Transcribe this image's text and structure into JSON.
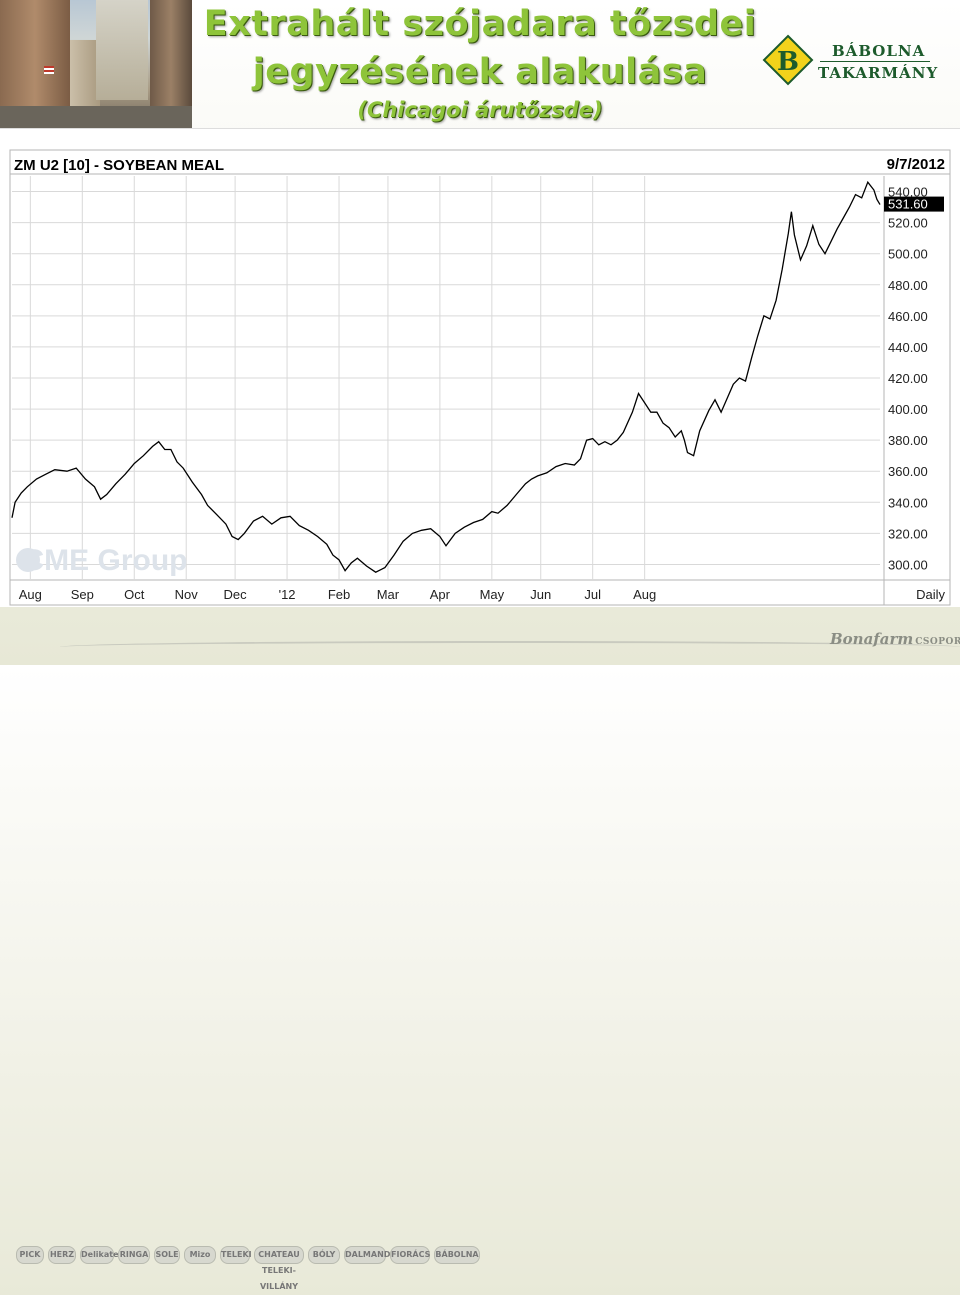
{
  "header": {
    "title_line1": "Extrahált szójadara tőzsdei",
    "title_line2": "jegyzésének alakulása",
    "subtitle": "(Chicagoi árutőzsde)"
  },
  "logo": {
    "line1": "BÁBOLNA",
    "line2": "TAKARMÁNY",
    "letter": "B"
  },
  "footer": {
    "brands": [
      "PICK",
      "HERZ",
      "Delikatesz",
      "RINGA",
      "SOLE",
      "Mizo",
      "TELEKI",
      "CHATEAU TELEKI-VILLÁNY",
      "BÓLY",
      "DALMAND",
      "FIORÁCS",
      "BÁBOLNA"
    ],
    "group_name": "Bonafarm",
    "group_suffix": "CSOPORT"
  },
  "colors": {
    "title_green": "#8ec43a",
    "logo_green": "#1d5b2c",
    "logo_yellow": "#f2d21b",
    "line": "#000000",
    "grid": "#d9d9d9"
  },
  "chart_data": {
    "type": "line",
    "title": "ZM U2 [10] - SOYBEAN MEAL",
    "date": "9/7/2012",
    "frequency_label": "Daily",
    "watermark": "CME Group",
    "last_value_label": "531.60",
    "last_value": 531.6,
    "x_tick_labels": [
      "Aug",
      "Sep",
      "Oct",
      "Nov",
      "Dec",
      "'12",
      "Feb",
      "Mar",
      "Apr",
      "May",
      "Jun",
      "Jul",
      "Aug"
    ],
    "y_tick_labels": [
      "540.00",
      "520.00",
      "500.00",
      "480.00",
      "460.00",
      "440.00",
      "420.00",
      "400.00",
      "380.00",
      "360.00",
      "340.00",
      "320.00",
      "300.00"
    ],
    "ylim": [
      290,
      550
    ],
    "grid": true,
    "series": [
      {
        "values": [
          [
            2011.55,
            330
          ],
          [
            2011.555,
            340
          ],
          [
            2011.565,
            346
          ],
          [
            2011.575,
            350
          ],
          [
            2011.59,
            355
          ],
          [
            2011.605,
            358
          ],
          [
            2011.62,
            361
          ],
          [
            2011.64,
            360
          ],
          [
            2011.655,
            362
          ],
          [
            2011.67,
            355
          ],
          [
            2011.685,
            350
          ],
          [
            2011.695,
            342
          ],
          [
            2011.705,
            345
          ],
          [
            2011.72,
            352
          ],
          [
            2011.735,
            358
          ],
          [
            2011.75,
            365
          ],
          [
            2011.765,
            370
          ],
          [
            2011.78,
            376
          ],
          [
            2011.79,
            379
          ],
          [
            2011.8,
            374
          ],
          [
            2011.81,
            374
          ],
          [
            2011.82,
            366
          ],
          [
            2011.83,
            362
          ],
          [
            2011.845,
            353
          ],
          [
            2011.86,
            345
          ],
          [
            2011.87,
            338
          ],
          [
            2011.885,
            332
          ],
          [
            2011.9,
            326
          ],
          [
            2011.91,
            318
          ],
          [
            2011.92,
            316
          ],
          [
            2011.93,
            320
          ],
          [
            2011.945,
            328
          ],
          [
            2011.96,
            331
          ],
          [
            2011.975,
            326
          ],
          [
            2011.99,
            330
          ],
          [
            2012.005,
            331
          ],
          [
            2012.02,
            325
          ],
          [
            2012.035,
            322
          ],
          [
            2012.05,
            318
          ],
          [
            2012.065,
            313
          ],
          [
            2012.075,
            306
          ],
          [
            2012.085,
            303
          ],
          [
            2012.095,
            296
          ],
          [
            2012.105,
            301
          ],
          [
            2012.115,
            304
          ],
          [
            2012.13,
            299
          ],
          [
            2012.145,
            295
          ],
          [
            2012.16,
            298
          ],
          [
            2012.175,
            306
          ],
          [
            2012.19,
            315
          ],
          [
            2012.205,
            320
          ],
          [
            2012.22,
            322
          ],
          [
            2012.235,
            323
          ],
          [
            2012.25,
            318
          ],
          [
            2012.26,
            312
          ],
          [
            2012.275,
            320
          ],
          [
            2012.29,
            324
          ],
          [
            2012.305,
            327
          ],
          [
            2012.32,
            329
          ],
          [
            2012.335,
            334
          ],
          [
            2012.345,
            333
          ],
          [
            2012.36,
            338
          ],
          [
            2012.375,
            345
          ],
          [
            2012.39,
            352
          ],
          [
            2012.4,
            355
          ],
          [
            2012.41,
            357
          ],
          [
            2012.425,
            359
          ],
          [
            2012.44,
            363
          ],
          [
            2012.455,
            365
          ],
          [
            2012.47,
            364
          ],
          [
            2012.48,
            368
          ],
          [
            2012.49,
            380
          ],
          [
            2012.5,
            381
          ],
          [
            2012.51,
            377
          ],
          [
            2012.52,
            379
          ],
          [
            2012.53,
            377
          ],
          [
            2012.54,
            380
          ],
          [
            2012.55,
            385
          ],
          [
            2012.565,
            398
          ],
          [
            2012.575,
            410
          ],
          [
            2012.585,
            404
          ],
          [
            2012.595,
            398
          ],
          [
            2012.605,
            398
          ],
          [
            2012.615,
            391
          ],
          [
            2012.625,
            388
          ],
          [
            2012.635,
            382
          ],
          [
            2012.645,
            386
          ],
          [
            2012.65,
            380
          ],
          [
            2012.655,
            372
          ],
          [
            2012.665,
            370
          ],
          [
            2012.675,
            386
          ],
          [
            2012.69,
            399
          ],
          [
            2012.7,
            406
          ],
          [
            2012.71,
            398
          ],
          [
            2012.72,
            407
          ],
          [
            2012.73,
            416
          ],
          [
            2012.74,
            420
          ],
          [
            2012.75,
            418
          ],
          [
            2012.76,
            433
          ],
          [
            2012.77,
            447
          ],
          [
            2012.78,
            460
          ],
          [
            2012.79,
            458
          ],
          [
            2012.8,
            470
          ],
          [
            2012.81,
            490
          ],
          [
            2012.82,
            513
          ],
          [
            2012.825,
            527
          ],
          [
            2012.83,
            512
          ],
          [
            2012.84,
            496
          ],
          [
            2012.85,
            505
          ],
          [
            2012.86,
            518
          ],
          [
            2012.87,
            506
          ],
          [
            2012.88,
            500
          ],
          [
            2012.89,
            508
          ],
          [
            2012.9,
            516
          ],
          [
            2012.91,
            523
          ],
          [
            2012.92,
            530
          ],
          [
            2012.93,
            538
          ],
          [
            2012.94,
            536
          ],
          [
            2012.95,
            546
          ],
          [
            2012.96,
            541
          ],
          [
            2012.965,
            535
          ],
          [
            2012.97,
            531.6
          ]
        ]
      }
    ],
    "x_ticks_at": [
      2011.58,
      2011.665,
      2011.75,
      2011.835,
      2011.915,
      2012.0,
      2012.085,
      2012.165,
      2012.25,
      2012.335,
      2012.415,
      2012.5,
      2012.585
    ]
  }
}
